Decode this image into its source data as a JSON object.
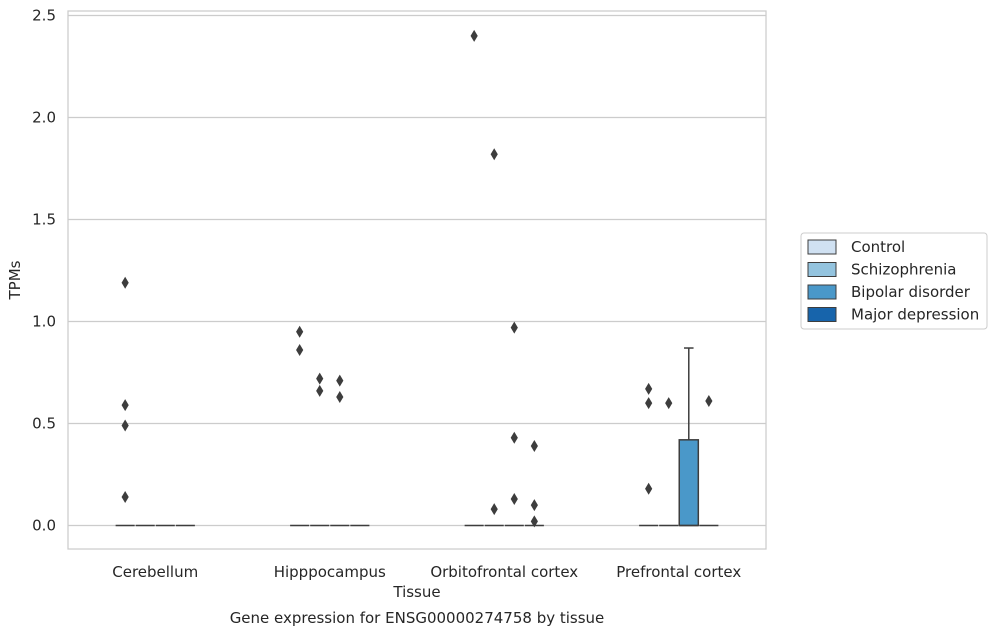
{
  "chart_data": {
    "type": "box",
    "caption": "Gene expression for ENSG00000274758 by tissue",
    "xlabel": "Tissue",
    "ylabel": "TPMs",
    "ylim": [
      -0.12,
      2.53
    ],
    "yticks": [
      0.0,
      0.5,
      1.0,
      1.5,
      2.0,
      2.5
    ],
    "ytick_labels": [
      "0.0",
      "0.5",
      "1.0",
      "1.5",
      "2.0",
      "2.5"
    ],
    "categories": [
      "Cerebellum",
      "Hipppocampus",
      "Orbitofrontal cortex",
      "Prefrontal cortex"
    ],
    "grid": "horizontal",
    "legend_position": "right",
    "series": [
      {
        "name": "Control",
        "color": "#d0e1f2",
        "boxes": [
          {
            "q1": 0,
            "median": 0,
            "q3": 0,
            "whisker_low": 0,
            "whisker_high": 0,
            "outliers": [
              1.19,
              0.59,
              0.49,
              0.14
            ]
          },
          {
            "q1": 0,
            "median": 0,
            "q3": 0,
            "whisker_low": 0,
            "whisker_high": 0,
            "outliers": [
              0.95,
              0.86
            ]
          },
          {
            "q1": 0,
            "median": 0,
            "q3": 0,
            "whisker_low": 0,
            "whisker_high": 0,
            "outliers": [
              2.4
            ]
          },
          {
            "q1": 0,
            "median": 0,
            "q3": 0,
            "whisker_low": 0,
            "whisker_high": 0,
            "outliers": [
              0.67,
              0.6,
              0.18
            ]
          }
        ]
      },
      {
        "name": "Schizophrenia",
        "color": "#94c4df",
        "boxes": [
          {
            "q1": 0,
            "median": 0,
            "q3": 0,
            "whisker_low": 0,
            "whisker_high": 0,
            "outliers": []
          },
          {
            "q1": 0,
            "median": 0,
            "q3": 0,
            "whisker_low": 0,
            "whisker_high": 0,
            "outliers": [
              0.72,
              0.66
            ]
          },
          {
            "q1": 0,
            "median": 0,
            "q3": 0,
            "whisker_low": 0,
            "whisker_high": 0,
            "outliers": [
              1.82,
              0.08
            ]
          },
          {
            "q1": 0,
            "median": 0,
            "q3": 0,
            "whisker_low": 0,
            "whisker_high": 0,
            "outliers": [
              0.6
            ]
          }
        ]
      },
      {
        "name": "Bipolar disorder",
        "color": "#4a98c9",
        "boxes": [
          {
            "q1": 0,
            "median": 0,
            "q3": 0,
            "whisker_low": 0,
            "whisker_high": 0,
            "outliers": []
          },
          {
            "q1": 0,
            "median": 0,
            "q3": 0,
            "whisker_low": 0,
            "whisker_high": 0,
            "outliers": [
              0.71,
              0.63
            ]
          },
          {
            "q1": 0,
            "median": 0,
            "q3": 0,
            "whisker_low": 0,
            "whisker_high": 0,
            "outliers": [
              0.97,
              0.43,
              0.13
            ]
          },
          {
            "q1": 0,
            "median": 0,
            "q3": 0.42,
            "whisker_low": 0,
            "whisker_high": 0.87,
            "outliers": []
          }
        ]
      },
      {
        "name": "Major depression",
        "color": "#1764ab",
        "boxes": [
          {
            "q1": 0,
            "median": 0,
            "q3": 0,
            "whisker_low": 0,
            "whisker_high": 0,
            "outliers": []
          },
          {
            "q1": 0,
            "median": 0,
            "q3": 0,
            "whisker_low": 0,
            "whisker_high": 0,
            "outliers": []
          },
          {
            "q1": 0,
            "median": 0,
            "q3": 0,
            "whisker_low": 0,
            "whisker_high": 0,
            "outliers": [
              0.39,
              0.1,
              0.02
            ]
          },
          {
            "q1": 0,
            "median": 0,
            "q3": 0,
            "whisker_low": 0,
            "whisker_high": 0,
            "outliers": [
              0.61
            ]
          }
        ]
      }
    ]
  }
}
